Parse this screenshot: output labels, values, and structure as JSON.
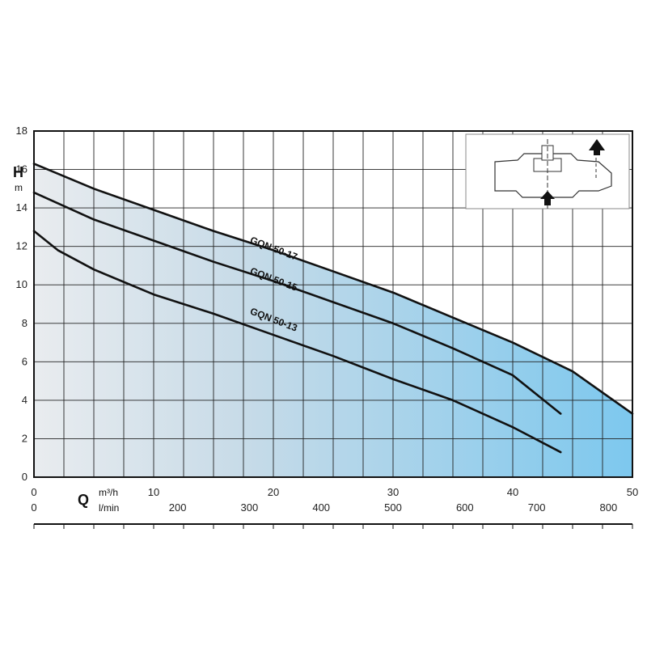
{
  "chart_data": {
    "type": "line",
    "y_axis": {
      "letter": "H",
      "unit": "m",
      "ticks": [
        "0",
        "2",
        "4",
        "6",
        "8",
        "10",
        "12",
        "14",
        "16",
        "18"
      ],
      "ylim": [
        0,
        18
      ]
    },
    "x_axis_primary": {
      "letter": "Q",
      "unit": "m³/h",
      "ticks": [
        "0",
        "10",
        "20",
        "30",
        "40",
        "50"
      ],
      "xlim": [
        0,
        50
      ]
    },
    "x_axis_secondary": {
      "unit": "l/min",
      "ticks": [
        "0",
        "200",
        "300",
        "400",
        "500",
        "600",
        "700",
        "800"
      ]
    },
    "grid": true,
    "fill_color": "#7dc8ee",
    "series": [
      {
        "name": "GQN 50-17",
        "x": [
          0,
          5,
          10,
          15,
          20,
          25,
          30,
          35,
          40,
          45,
          50
        ],
        "y": [
          16.3,
          15.0,
          13.9,
          12.8,
          11.8,
          10.7,
          9.6,
          8.3,
          7.0,
          5.5,
          3.3
        ]
      },
      {
        "name": "GQN 50-15",
        "x": [
          0,
          5,
          10,
          15,
          20,
          25,
          30,
          35,
          40,
          44
        ],
        "y": [
          14.8,
          13.4,
          12.3,
          11.2,
          10.2,
          9.1,
          8.0,
          6.7,
          5.3,
          3.3
        ]
      },
      {
        "name": "GQN 50-13",
        "x": [
          0,
          2,
          5,
          10,
          15,
          20,
          25,
          30,
          35,
          40,
          44
        ],
        "y": [
          12.8,
          11.8,
          10.8,
          9.5,
          8.5,
          7.4,
          6.3,
          5.1,
          4.0,
          2.6,
          1.3
        ]
      }
    ]
  },
  "inset": {
    "icon": "pump-cross-section-icon"
  }
}
